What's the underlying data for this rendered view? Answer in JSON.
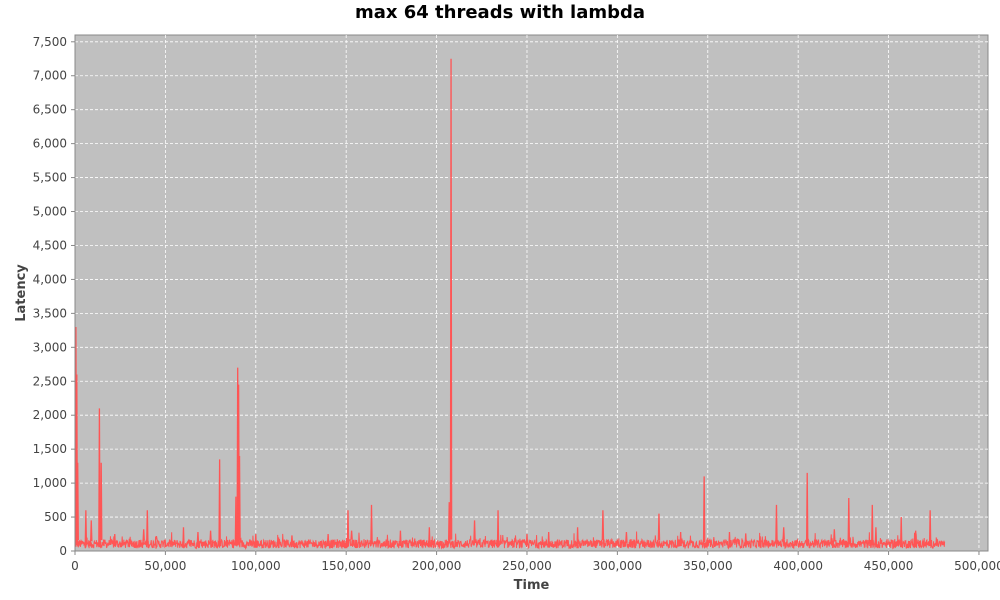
{
  "chart_data": {
    "type": "line",
    "title": "max 64 threads with lambda",
    "xlabel": "Time",
    "ylabel": "Latency",
    "xlim": [
      0,
      505000
    ],
    "ylim": [
      0,
      7600
    ],
    "x_ticks": [
      0,
      50000,
      100000,
      150000,
      200000,
      250000,
      300000,
      350000,
      400000,
      450000,
      500000
    ],
    "x_tick_labels": [
      "0",
      "50,000",
      "100,000",
      "150,000",
      "200,000",
      "250,000",
      "300,000",
      "350,000",
      "400,000",
      "450,000",
      "500,000"
    ],
    "y_ticks": [
      0,
      500,
      1000,
      1500,
      2000,
      2500,
      3000,
      3500,
      4000,
      4500,
      5000,
      5500,
      6000,
      6500,
      7000,
      7500
    ],
    "y_tick_labels": [
      "0",
      "500",
      "1,000",
      "1,500",
      "2,000",
      "2,500",
      "3,000",
      "3,500",
      "4,000",
      "4,500",
      "5,000",
      "5,500",
      "6,000",
      "6,500",
      "7,000",
      "7,500"
    ],
    "grid": true,
    "legend": "none",
    "colors": {
      "plot_background": "#c0c0c0",
      "grid": "#ffffff",
      "series": "#ff5555"
    },
    "series": [
      {
        "x_range": [
          0,
          481000
        ],
        "baseline_range": [
          40,
          170
        ],
        "spikes": [
          {
            "x": 500,
            "y": 3300
          },
          {
            "x": 1000,
            "y": 2600
          },
          {
            "x": 1500,
            "y": 1300
          },
          {
            "x": 6000,
            "y": 600
          },
          {
            "x": 9000,
            "y": 450
          },
          {
            "x": 13500,
            "y": 2100
          },
          {
            "x": 14500,
            "y": 1300
          },
          {
            "x": 22000,
            "y": 250
          },
          {
            "x": 38000,
            "y": 320
          },
          {
            "x": 40000,
            "y": 600
          },
          {
            "x": 45000,
            "y": 220
          },
          {
            "x": 60000,
            "y": 350
          },
          {
            "x": 68000,
            "y": 280
          },
          {
            "x": 75000,
            "y": 300
          },
          {
            "x": 80000,
            "y": 1350
          },
          {
            "x": 89000,
            "y": 800
          },
          {
            "x": 90000,
            "y": 2700
          },
          {
            "x": 90500,
            "y": 2450
          },
          {
            "x": 91000,
            "y": 1400
          },
          {
            "x": 100000,
            "y": 250
          },
          {
            "x": 120000,
            "y": 230
          },
          {
            "x": 140000,
            "y": 250
          },
          {
            "x": 151000,
            "y": 600
          },
          {
            "x": 153000,
            "y": 300
          },
          {
            "x": 164000,
            "y": 680
          },
          {
            "x": 180000,
            "y": 300
          },
          {
            "x": 196000,
            "y": 350
          },
          {
            "x": 207000,
            "y": 720
          },
          {
            "x": 208000,
            "y": 7250
          },
          {
            "x": 221000,
            "y": 450
          },
          {
            "x": 234000,
            "y": 600
          },
          {
            "x": 250000,
            "y": 250
          },
          {
            "x": 262000,
            "y": 280
          },
          {
            "x": 278000,
            "y": 350
          },
          {
            "x": 292000,
            "y": 600
          },
          {
            "x": 305000,
            "y": 280
          },
          {
            "x": 323000,
            "y": 550
          },
          {
            "x": 335000,
            "y": 280
          },
          {
            "x": 348000,
            "y": 1100
          },
          {
            "x": 362000,
            "y": 280
          },
          {
            "x": 371000,
            "y": 260
          },
          {
            "x": 388000,
            "y": 680
          },
          {
            "x": 392000,
            "y": 350
          },
          {
            "x": 405000,
            "y": 1150
          },
          {
            "x": 420000,
            "y": 320
          },
          {
            "x": 428000,
            "y": 780
          },
          {
            "x": 441000,
            "y": 680
          },
          {
            "x": 443000,
            "y": 350
          },
          {
            "x": 457000,
            "y": 500
          },
          {
            "x": 465000,
            "y": 300
          },
          {
            "x": 473000,
            "y": 600
          }
        ]
      }
    ]
  }
}
